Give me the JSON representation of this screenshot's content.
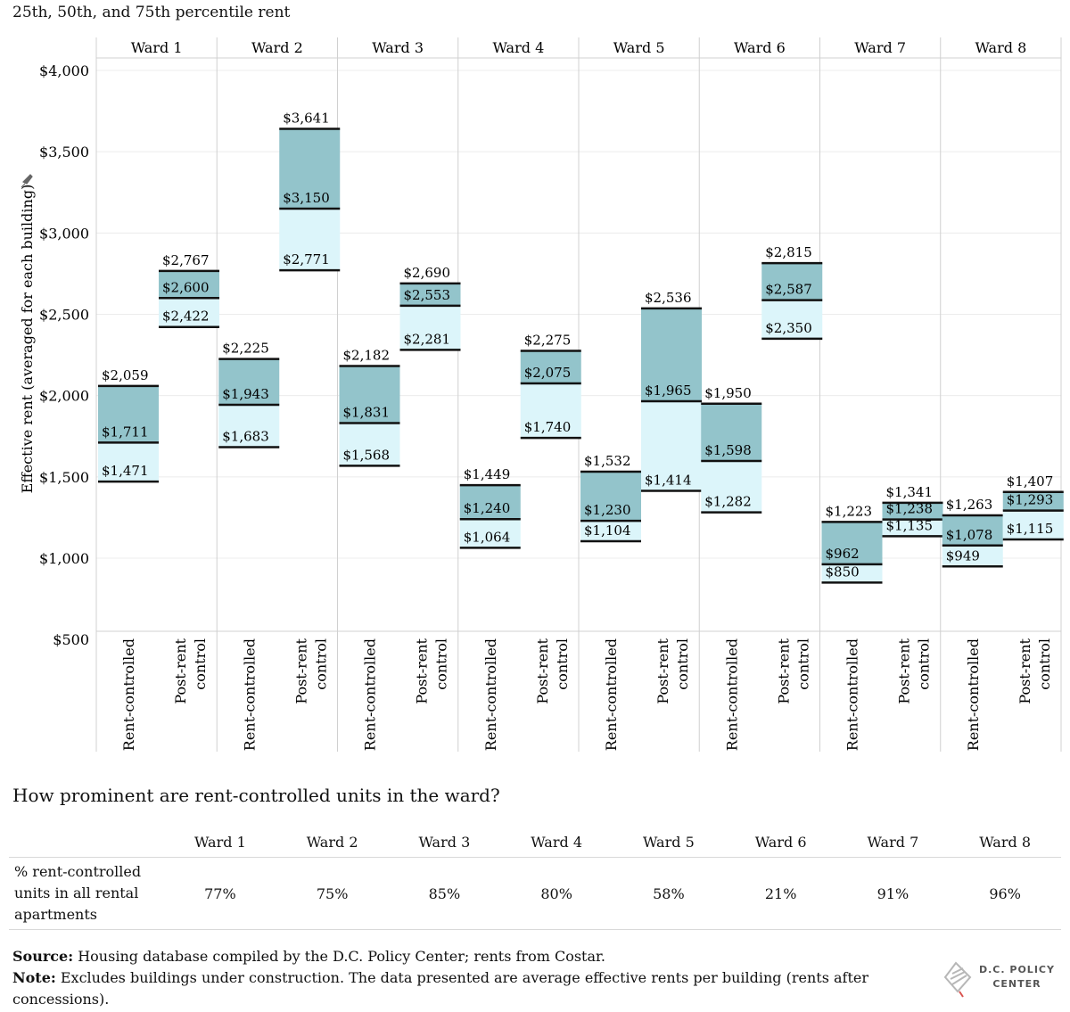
{
  "chart_data": {
    "type": "bar",
    "title": "25th, 50th, and 75th percentile rent",
    "ylabel": "Effective rent (averaged for each building)",
    "ylim": [
      450,
      4100
    ],
    "yticks": [
      500,
      1000,
      1500,
      2000,
      2500,
      3000,
      3500,
      4000
    ],
    "ytick_labels": [
      "$500",
      "$1,000",
      "$1,500",
      "$2,000",
      "$2,500",
      "$3,000",
      "$3,500",
      "$4,000"
    ],
    "categories": [
      "Rent-controlled",
      "Post-rent control"
    ],
    "wards": [
      {
        "name": "Ward 1",
        "groups": [
          {
            "category": "Rent-controlled",
            "p25": 1471,
            "p50": 1711,
            "p75": 2059,
            "labels": [
              "$1,471",
              "$1,711",
              "$2,059"
            ]
          },
          {
            "category": "Post-rent control",
            "p25": 2422,
            "p50": 2600,
            "p75": 2767,
            "labels": [
              "$2,422",
              "$2,600",
              "$2,767"
            ]
          }
        ]
      },
      {
        "name": "Ward 2",
        "groups": [
          {
            "category": "Rent-controlled",
            "p25": 1683,
            "p50": 1943,
            "p75": 2225,
            "labels": [
              "$1,683",
              "$1,943",
              "$2,225"
            ]
          },
          {
            "category": "Post-rent control",
            "p25": 2771,
            "p50": 3150,
            "p75": 3641,
            "labels": [
              "$2,771",
              "$3,150",
              "$3,641"
            ]
          }
        ]
      },
      {
        "name": "Ward 3",
        "groups": [
          {
            "category": "Rent-controlled",
            "p25": 1568,
            "p50": 1831,
            "p75": 2182,
            "labels": [
              "$1,568",
              "$1,831",
              "$2,182"
            ]
          },
          {
            "category": "Post-rent control",
            "p25": 2281,
            "p50": 2553,
            "p75": 2690,
            "labels": [
              "$2,281",
              "$2,553",
              "$2,690"
            ]
          }
        ]
      },
      {
        "name": "Ward 4",
        "groups": [
          {
            "category": "Rent-controlled",
            "p25": 1064,
            "p50": 1240,
            "p75": 1449,
            "labels": [
              "$1,064",
              "$1,240",
              "$1,449"
            ]
          },
          {
            "category": "Post-rent control",
            "p25": 1740,
            "p50": 2075,
            "p75": 2275,
            "labels": [
              "$1,740",
              "$2,075",
              "$2,275"
            ]
          }
        ]
      },
      {
        "name": "Ward 5",
        "groups": [
          {
            "category": "Rent-controlled",
            "p25": 1104,
            "p50": 1230,
            "p75": 1532,
            "labels": [
              "$1,104",
              "$1,230",
              "$1,532"
            ]
          },
          {
            "category": "Post-rent control",
            "p25": 1414,
            "p50": 1965,
            "p75": 2536,
            "labels": [
              "$1,414",
              "$1,965",
              "$2,536"
            ]
          }
        ]
      },
      {
        "name": "Ward 6",
        "groups": [
          {
            "category": "Rent-controlled",
            "p25": 1282,
            "p50": 1598,
            "p75": 1950,
            "labels": [
              "$1,282",
              "$1,598",
              "$1,950"
            ]
          },
          {
            "category": "Post-rent control",
            "p25": 2350,
            "p50": 2587,
            "p75": 2815,
            "labels": [
              "$2,350",
              "$2,587",
              "$2,815"
            ]
          }
        ]
      },
      {
        "name": "Ward 7",
        "groups": [
          {
            "category": "Rent-controlled",
            "p25": 850,
            "p50": 962,
            "p75": 1223,
            "labels": [
              "$850",
              "$962",
              "$1,223"
            ]
          },
          {
            "category": "Post-rent control",
            "p25": 1135,
            "p50": 1238,
            "p75": 1341,
            "labels": [
              "$1,135",
              "$1,238",
              "$1,341"
            ]
          }
        ]
      },
      {
        "name": "Ward 8",
        "groups": [
          {
            "category": "Rent-controlled",
            "p25": 949,
            "p50": 1078,
            "p75": 1263,
            "labels": [
              "$949",
              "$1,078",
              "$1,263"
            ]
          },
          {
            "category": "Post-rent control",
            "p25": 1115,
            "p50": 1293,
            "p75": 1407,
            "labels": [
              "$1,115",
              "$1,293",
              "$1,407"
            ]
          }
        ]
      }
    ],
    "colors": {
      "upper_band": "#93c4cb",
      "lower_band": "#dcf5fa",
      "median_line": "#111111",
      "grid": "#d0d0d0"
    }
  },
  "table": {
    "title": "How prominent are rent-controlled units in the ward?",
    "row_label": "% rent-controlled units in all rental apartments",
    "columns": [
      "Ward 1",
      "Ward 2",
      "Ward 3",
      "Ward 4",
      "Ward 5",
      "Ward 6",
      "Ward 7",
      "Ward 8"
    ],
    "values": [
      "77%",
      "75%",
      "85%",
      "80%",
      "58%",
      "21%",
      "91%",
      "96%"
    ]
  },
  "footer": {
    "source_label": "Source:",
    "source_text": "Housing database compiled by the D.C. Policy Center; rents from Costar.",
    "note_label": "Note:",
    "note_text": "Excludes buildings under construction. The data presented are average effective rents per building (rents after concessions)."
  },
  "logo": {
    "line1": "D.C. POLICY",
    "line2": "CENTER"
  }
}
